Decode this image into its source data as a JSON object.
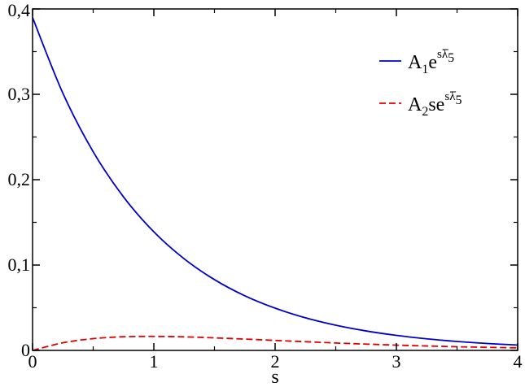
{
  "chart_data": {
    "type": "line",
    "xlabel": "s",
    "ylabel": "",
    "xlim": [
      0,
      4
    ],
    "ylim": [
      0,
      0.4
    ],
    "x_ticks": [
      0,
      1,
      2,
      3,
      4
    ],
    "x_tick_labels": [
      "0",
      "1",
      "2",
      "3",
      "4"
    ],
    "y_ticks": [
      0,
      0.1,
      0.2,
      0.3,
      0.4
    ],
    "y_tick_labels": [
      "0",
      "0,1",
      "0,2",
      "0,3",
      "0,4"
    ],
    "grid": false,
    "legend_position": "top-right",
    "series": [
      {
        "name": "A1e^{sλ5}",
        "legend": {
          "base": "A",
          "sub": "1",
          "mid": "e",
          "sup_s": "s",
          "sup_lambda": "λ",
          "sup_sub": "5"
        },
        "color": "#0000cc",
        "style": "solid",
        "x": [
          0,
          0.25,
          0.5,
          0.75,
          1.0,
          1.25,
          1.5,
          1.75,
          2.0,
          2.25,
          2.5,
          2.75,
          3.0,
          3.25,
          3.5,
          3.75,
          4.0
        ],
        "values": [
          0.39,
          0.3013,
          0.2327,
          0.1798,
          0.1389,
          0.1073,
          0.0829,
          0.064,
          0.0495,
          0.0382,
          0.0295,
          0.0228,
          0.0176,
          0.0136,
          0.0105,
          0.0081,
          0.0063
        ]
      },
      {
        "name": "A2se^{sλ5}",
        "legend": {
          "base": "A",
          "sub": "2",
          "mid": "se",
          "sup_s": "s",
          "sup_lambda": "λ",
          "sup_sub": "5"
        },
        "color": "#e00000",
        "style": "dashed",
        "x": [
          0,
          0.25,
          0.5,
          0.75,
          1.0,
          1.25,
          1.5,
          1.75,
          2.0,
          2.25,
          2.5,
          2.75,
          3.0,
          3.25,
          3.5,
          3.75,
          4.0
        ],
        "values": [
          0,
          0.0089,
          0.0138,
          0.016,
          0.0164,
          0.0159,
          0.0147,
          0.0133,
          0.0117,
          0.0102,
          0.0087,
          0.0074,
          0.0062,
          0.0052,
          0.0043,
          0.0036,
          0.003
        ]
      }
    ]
  }
}
